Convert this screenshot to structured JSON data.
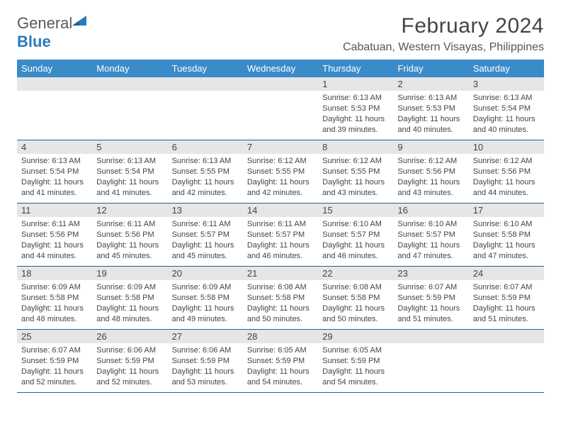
{
  "brand": {
    "word1": "General",
    "word2": "Blue",
    "flag_color": "#2a7ab9"
  },
  "title": "February 2024",
  "location": "Cabatuan, Western Visayas, Philippines",
  "colors": {
    "header_bg": "#3b8bc9",
    "week_border": "#2a5f88",
    "daynum_bg": "#e6e6e6",
    "text": "#444444",
    "page_bg": "#ffffff"
  },
  "daysOfWeek": [
    "Sunday",
    "Monday",
    "Tuesday",
    "Wednesday",
    "Thursday",
    "Friday",
    "Saturday"
  ],
  "weeks": [
    [
      null,
      null,
      null,
      null,
      {
        "n": "1",
        "sunrise": "6:13 AM",
        "sunset": "5:53 PM",
        "daylight": "11 hours and 39 minutes."
      },
      {
        "n": "2",
        "sunrise": "6:13 AM",
        "sunset": "5:53 PM",
        "daylight": "11 hours and 40 minutes."
      },
      {
        "n": "3",
        "sunrise": "6:13 AM",
        "sunset": "5:54 PM",
        "daylight": "11 hours and 40 minutes."
      }
    ],
    [
      {
        "n": "4",
        "sunrise": "6:13 AM",
        "sunset": "5:54 PM",
        "daylight": "11 hours and 41 minutes."
      },
      {
        "n": "5",
        "sunrise": "6:13 AM",
        "sunset": "5:54 PM",
        "daylight": "11 hours and 41 minutes."
      },
      {
        "n": "6",
        "sunrise": "6:13 AM",
        "sunset": "5:55 PM",
        "daylight": "11 hours and 42 minutes."
      },
      {
        "n": "7",
        "sunrise": "6:12 AM",
        "sunset": "5:55 PM",
        "daylight": "11 hours and 42 minutes."
      },
      {
        "n": "8",
        "sunrise": "6:12 AM",
        "sunset": "5:55 PM",
        "daylight": "11 hours and 43 minutes."
      },
      {
        "n": "9",
        "sunrise": "6:12 AM",
        "sunset": "5:56 PM",
        "daylight": "11 hours and 43 minutes."
      },
      {
        "n": "10",
        "sunrise": "6:12 AM",
        "sunset": "5:56 PM",
        "daylight": "11 hours and 44 minutes."
      }
    ],
    [
      {
        "n": "11",
        "sunrise": "6:11 AM",
        "sunset": "5:56 PM",
        "daylight": "11 hours and 44 minutes."
      },
      {
        "n": "12",
        "sunrise": "6:11 AM",
        "sunset": "5:56 PM",
        "daylight": "11 hours and 45 minutes."
      },
      {
        "n": "13",
        "sunrise": "6:11 AM",
        "sunset": "5:57 PM",
        "daylight": "11 hours and 45 minutes."
      },
      {
        "n": "14",
        "sunrise": "6:11 AM",
        "sunset": "5:57 PM",
        "daylight": "11 hours and 46 minutes."
      },
      {
        "n": "15",
        "sunrise": "6:10 AM",
        "sunset": "5:57 PM",
        "daylight": "11 hours and 46 minutes."
      },
      {
        "n": "16",
        "sunrise": "6:10 AM",
        "sunset": "5:57 PM",
        "daylight": "11 hours and 47 minutes."
      },
      {
        "n": "17",
        "sunrise": "6:10 AM",
        "sunset": "5:58 PM",
        "daylight": "11 hours and 47 minutes."
      }
    ],
    [
      {
        "n": "18",
        "sunrise": "6:09 AM",
        "sunset": "5:58 PM",
        "daylight": "11 hours and 48 minutes."
      },
      {
        "n": "19",
        "sunrise": "6:09 AM",
        "sunset": "5:58 PM",
        "daylight": "11 hours and 48 minutes."
      },
      {
        "n": "20",
        "sunrise": "6:09 AM",
        "sunset": "5:58 PM",
        "daylight": "11 hours and 49 minutes."
      },
      {
        "n": "21",
        "sunrise": "6:08 AM",
        "sunset": "5:58 PM",
        "daylight": "11 hours and 50 minutes."
      },
      {
        "n": "22",
        "sunrise": "6:08 AM",
        "sunset": "5:58 PM",
        "daylight": "11 hours and 50 minutes."
      },
      {
        "n": "23",
        "sunrise": "6:07 AM",
        "sunset": "5:59 PM",
        "daylight": "11 hours and 51 minutes."
      },
      {
        "n": "24",
        "sunrise": "6:07 AM",
        "sunset": "5:59 PM",
        "daylight": "11 hours and 51 minutes."
      }
    ],
    [
      {
        "n": "25",
        "sunrise": "6:07 AM",
        "sunset": "5:59 PM",
        "daylight": "11 hours and 52 minutes."
      },
      {
        "n": "26",
        "sunrise": "6:06 AM",
        "sunset": "5:59 PM",
        "daylight": "11 hours and 52 minutes."
      },
      {
        "n": "27",
        "sunrise": "6:06 AM",
        "sunset": "5:59 PM",
        "daylight": "11 hours and 53 minutes."
      },
      {
        "n": "28",
        "sunrise": "6:05 AM",
        "sunset": "5:59 PM",
        "daylight": "11 hours and 54 minutes."
      },
      {
        "n": "29",
        "sunrise": "6:05 AM",
        "sunset": "5:59 PM",
        "daylight": "11 hours and 54 minutes."
      },
      null,
      null
    ]
  ],
  "labels": {
    "sunrise": "Sunrise:",
    "sunset": "Sunset:",
    "daylight": "Daylight:"
  }
}
